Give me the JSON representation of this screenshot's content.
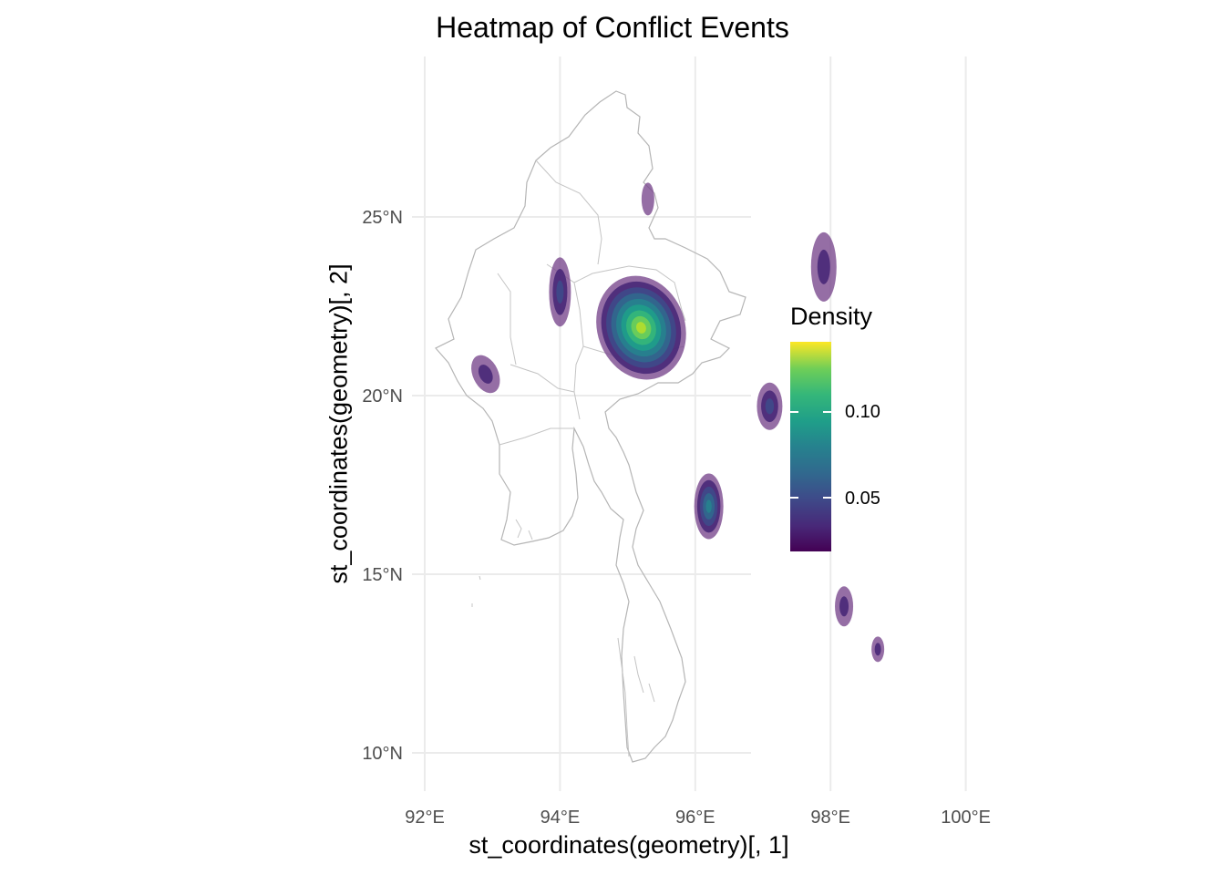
{
  "title": "Heatmap of Conflict Events",
  "xlabel": "st_coordinates(geometry)[, 1]",
  "ylabel": "st_coordinates(geometry)[, 2]",
  "legend": {
    "title": "Density",
    "labels": [
      "0.10",
      "0.05"
    ],
    "values": [
      0.1,
      0.05
    ],
    "range": [
      0.02,
      0.145
    ]
  },
  "chart_data": {
    "type": "heatmap",
    "title": "Heatmap of Conflict Events",
    "xlabel": "st_coordinates(geometry)[, 1]",
    "ylabel": "st_coordinates(geometry)[, 2]",
    "x_ticks": [
      "92°E",
      "94°E",
      "96°E",
      "98°E",
      "100°E"
    ],
    "x_tick_values": [
      92,
      94,
      96,
      98,
      100
    ],
    "y_ticks": [
      "25°N",
      "20°N",
      "15°N",
      "10°N"
    ],
    "y_tick_values": [
      25,
      20,
      15,
      10
    ],
    "xlim": [
      91.9,
      101.6
    ],
    "ylim": [
      9.0,
      29.2
    ],
    "grid": true,
    "legend_position": "right",
    "colors": {
      "palette": [
        "#440154",
        "#3e4a89",
        "#26828e",
        "#35b779",
        "#fde725"
      ],
      "contour_fill": "#7b4a8f",
      "border": "#b5b5b5",
      "grid": "#ebebeb"
    },
    "hotspots": [
      {
        "lon": 95.2,
        "lat": 21.9,
        "peak_density": 0.13
      },
      {
        "lon": 96.2,
        "lat": 16.9,
        "peak_density": 0.07
      },
      {
        "lon": 97.1,
        "lat": 19.7,
        "peak_density": 0.05
      },
      {
        "lon": 94.0,
        "lat": 22.9,
        "peak_density": 0.04
      },
      {
        "lon": 97.9,
        "lat": 23.6,
        "peak_density": 0.03
      },
      {
        "lon": 98.2,
        "lat": 14.1,
        "peak_density": 0.03
      },
      {
        "lon": 92.9,
        "lat": 20.6,
        "peak_density": 0.025
      },
      {
        "lon": 98.7,
        "lat": 12.9,
        "peak_density": 0.025
      },
      {
        "lon": 95.3,
        "lat": 25.5,
        "peak_density": 0.02
      }
    ]
  }
}
